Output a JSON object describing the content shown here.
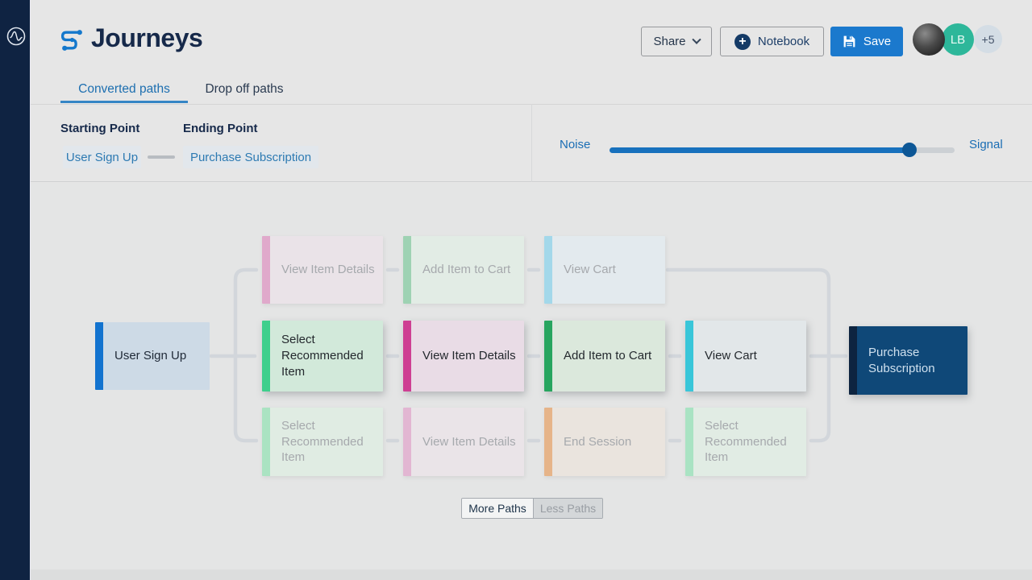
{
  "app": {
    "title": "Journeys"
  },
  "header": {
    "share": {
      "label": "Share"
    },
    "notebook": {
      "label": "Notebook"
    },
    "save": {
      "label": "Save"
    },
    "avatars": [
      {
        "type": "photo",
        "label": ""
      },
      {
        "type": "initials",
        "label": "LB",
        "color": "#2db79a"
      },
      {
        "type": "overflow",
        "label": "+5",
        "color": "#d4dde5"
      }
    ]
  },
  "tabs": [
    {
      "label": "Converted paths",
      "active": true
    },
    {
      "label": "Drop off paths",
      "active": false
    }
  ],
  "filters": {
    "starting_point": {
      "label": "Starting Point",
      "value": "User Sign Up"
    },
    "ending_point": {
      "label": "Ending Point",
      "value": "Purchase Subscription"
    },
    "noise_signal": {
      "left_label": "Noise",
      "right_label": "Signal",
      "value_percent": 87
    }
  },
  "diagram": {
    "nodes": [
      {
        "label": "User Sign Up",
        "col": 0,
        "row": 1,
        "state": "start",
        "accent": "#1273cf",
        "bg": "#cddae6"
      },
      {
        "label": "View Item Details",
        "col": 1,
        "row": 0,
        "state": "faded",
        "accent": "#e0a9cb",
        "bg": "#eae3e8"
      },
      {
        "label": "Select Recommended Item",
        "col": 1,
        "row": 1,
        "state": "active",
        "accent": "#3ecf8c",
        "bg": "#d2e9da"
      },
      {
        "label": "Select Recommended Item",
        "col": 1,
        "row": 2,
        "state": "faded",
        "accent": "#aae3c2",
        "bg": "#e0ece3"
      },
      {
        "label": "Add Item to Cart",
        "col": 2,
        "row": 0,
        "state": "faded",
        "accent": "#9ed2b3",
        "bg": "#e2ece5"
      },
      {
        "label": "View Item Details",
        "col": 2,
        "row": 1,
        "state": "active",
        "accent": "#ce3f93",
        "bg": "#e9dce6"
      },
      {
        "label": "View Item Details",
        "col": 2,
        "row": 2,
        "state": "faded",
        "accent": "#e2b6d2",
        "bg": "#eae4e8"
      },
      {
        "label": "View Cart",
        "col": 3,
        "row": 0,
        "state": "faded",
        "accent": "#a3d8ea",
        "bg": "#e3eaee"
      },
      {
        "label": "Add Item to Cart",
        "col": 3,
        "row": 1,
        "state": "active",
        "accent": "#27a55f",
        "bg": "#dbe8dc"
      },
      {
        "label": "End Session",
        "col": 3,
        "row": 2,
        "state": "faded",
        "accent": "#e6b489",
        "bg": "#eae4de"
      },
      {
        "label": "View Cart",
        "col": 4,
        "row": 1,
        "state": "active",
        "accent": "#39c6d9",
        "bg": "#e2e7e9"
      },
      {
        "label": "Select Recommended Item",
        "col": 4,
        "row": 2,
        "state": "faded",
        "accent": "#a9e3c3",
        "bg": "#e1ece4"
      },
      {
        "label": "Purchase Subscription",
        "col": 5,
        "row": 1,
        "state": "end",
        "accent": "#0d2440",
        "bg": "#0f4878"
      }
    ]
  },
  "footer": {
    "more_paths": "More Paths",
    "less_paths": "Less Paths"
  },
  "colors": {
    "sidebar": "#0f2342",
    "brand_blue": "#1478cc",
    "primary_button": "#1b79cd",
    "tab_active": "#1d6fb0",
    "navy_text": "#16294a",
    "connector": "#d2d6db",
    "slider_fill": "#1871bd",
    "slider_thumb": "#0d5796"
  }
}
